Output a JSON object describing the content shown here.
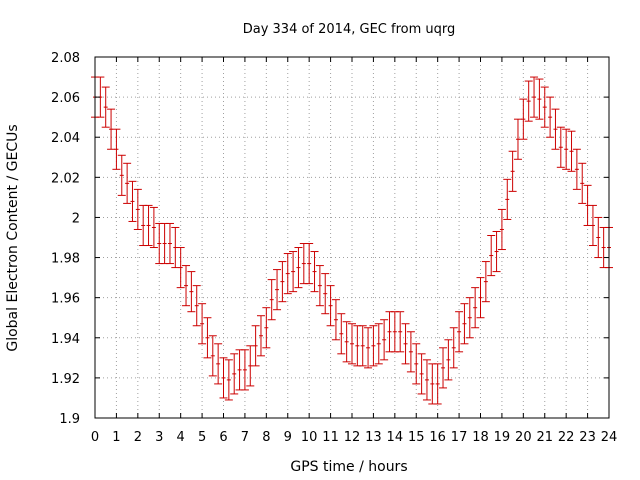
{
  "chart_data": {
    "type": "scatter",
    "title": "Day 334 of 2014, GEC from uqrg",
    "xlabel": "GPS time / hours",
    "ylabel": "Global Electron Content / GECUs",
    "xlim": [
      0,
      24
    ],
    "ylim": [
      1.9,
      2.08
    ],
    "grid": true,
    "x_ticks": [
      0,
      1,
      2,
      3,
      4,
      5,
      6,
      7,
      8,
      9,
      10,
      11,
      12,
      13,
      14,
      15,
      16,
      17,
      18,
      19,
      20,
      21,
      22,
      23,
      24
    ],
    "y_ticks": [
      1.9,
      1.92,
      1.94,
      1.96,
      1.98,
      2.0,
      2.02,
      2.04,
      2.06,
      2.08
    ],
    "x_tick_labels": [
      "0",
      "1",
      "2",
      "3",
      "4",
      "5",
      "6",
      "7",
      "8",
      "9",
      "10",
      "11",
      "12",
      "13",
      "14",
      "15",
      "16",
      "17",
      "18",
      "19",
      "20",
      "21",
      "22",
      "23",
      "24"
    ],
    "y_tick_labels": [
      "1.9",
      "1.92",
      "1.94",
      "1.96",
      "1.98",
      "2",
      "2.02",
      "2.04",
      "2.06",
      "2.08"
    ],
    "series": [
      {
        "color": "#cc0000",
        "error": 0.01,
        "x": [
          0.0,
          0.25,
          0.5,
          0.75,
          1.0,
          1.25,
          1.5,
          1.75,
          2.0,
          2.25,
          2.5,
          2.75,
          3.0,
          3.25,
          3.5,
          3.75,
          4.0,
          4.25,
          4.5,
          4.75,
          5.0,
          5.25,
          5.5,
          5.75,
          6.0,
          6.25,
          6.5,
          6.75,
          7.0,
          7.25,
          7.5,
          7.75,
          8.0,
          8.25,
          8.5,
          8.75,
          9.0,
          9.25,
          9.5,
          9.75,
          10.0,
          10.25,
          10.5,
          10.75,
          11.0,
          11.25,
          11.5,
          11.75,
          12.0,
          12.25,
          12.5,
          12.75,
          13.0,
          13.25,
          13.5,
          13.75,
          14.0,
          14.25,
          14.5,
          14.75,
          15.0,
          15.25,
          15.5,
          15.75,
          16.0,
          16.25,
          16.5,
          16.75,
          17.0,
          17.25,
          17.5,
          17.75,
          18.0,
          18.25,
          18.5,
          18.75,
          19.0,
          19.25,
          19.5,
          19.75,
          20.0,
          20.25,
          20.5,
          20.75,
          21.0,
          21.25,
          21.5,
          21.75,
          22.0,
          22.25,
          22.5,
          22.75,
          23.0,
          23.25,
          23.5,
          23.75,
          24.0
        ],
        "y": [
          2.06,
          2.06,
          2.055,
          2.044,
          2.034,
          2.021,
          2.017,
          2.008,
          2.004,
          1.996,
          1.996,
          1.995,
          1.987,
          1.987,
          1.987,
          1.985,
          1.975,
          1.966,
          1.963,
          1.956,
          1.947,
          1.94,
          1.931,
          1.927,
          1.92,
          1.919,
          1.922,
          1.924,
          1.924,
          1.926,
          1.936,
          1.941,
          1.945,
          1.959,
          1.964,
          1.968,
          1.972,
          1.973,
          1.975,
          1.977,
          1.977,
          1.973,
          1.966,
          1.962,
          1.956,
          1.949,
          1.942,
          1.938,
          1.937,
          1.936,
          1.936,
          1.935,
          1.936,
          1.937,
          1.939,
          1.943,
          1.943,
          1.943,
          1.937,
          1.933,
          1.927,
          1.922,
          1.919,
          1.917,
          1.917,
          1.925,
          1.929,
          1.935,
          1.943,
          1.947,
          1.95,
          1.955,
          1.96,
          1.968,
          1.981,
          1.983,
          1.994,
          2.009,
          2.023,
          2.039,
          2.049,
          2.058,
          2.06,
          2.059,
          2.055,
          2.05,
          2.044,
          2.035,
          2.034,
          2.033,
          2.024,
          2.017,
          2.006,
          1.996,
          1.99,
          1.985,
          1.985
        ]
      }
    ]
  }
}
